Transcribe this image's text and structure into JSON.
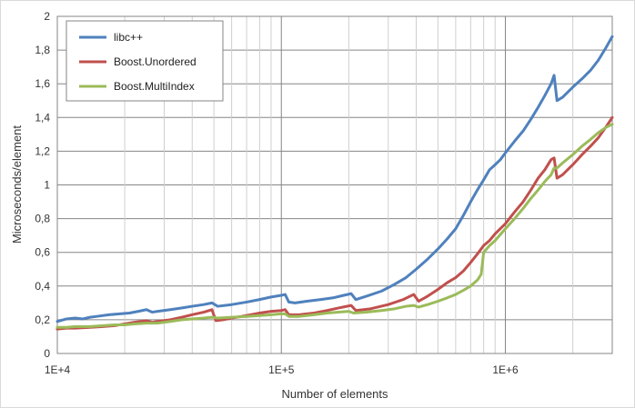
{
  "chart_data": {
    "type": "line",
    "title": "",
    "xlabel": "Number of elements",
    "ylabel": "Microseconds/element",
    "x_scale": "log",
    "xlim": [
      10000,
      3000000
    ],
    "ylim": [
      0,
      2
    ],
    "grid": true,
    "legend_position": "top-left",
    "x_ticks": [
      {
        "value": 10000,
        "label": "1E+4"
      },
      {
        "value": 100000,
        "label": "1E+5"
      },
      {
        "value": 1000000,
        "label": "1E+6"
      }
    ],
    "y_ticks": [
      {
        "value": 0,
        "label": "0"
      },
      {
        "value": 0.2,
        "label": "0,2"
      },
      {
        "value": 0.4,
        "label": "0,4"
      },
      {
        "value": 0.6,
        "label": "0,6"
      },
      {
        "value": 0.8,
        "label": "0,8"
      },
      {
        "value": 1,
        "label": "1"
      },
      {
        "value": 1.2,
        "label": "1,2"
      },
      {
        "value": 1.4,
        "label": "1,4"
      },
      {
        "value": 1.6,
        "label": "1,6"
      },
      {
        "value": 1.8,
        "label": "1,8"
      },
      {
        "value": 2,
        "label": "2"
      }
    ],
    "series": [
      {
        "name": "libc++",
        "color": "#4f81bd",
        "points": [
          [
            10000,
            0.19
          ],
          [
            11000,
            0.205
          ],
          [
            12000,
            0.21
          ],
          [
            13000,
            0.205
          ],
          [
            14000,
            0.215
          ],
          [
            15000,
            0.22
          ],
          [
            17000,
            0.23
          ],
          [
            19000,
            0.235
          ],
          [
            21000,
            0.24
          ],
          [
            23000,
            0.25
          ],
          [
            25000,
            0.26
          ],
          [
            26500,
            0.245
          ],
          [
            28000,
            0.25
          ],
          [
            32000,
            0.26
          ],
          [
            36000,
            0.27
          ],
          [
            40000,
            0.28
          ],
          [
            45000,
            0.29
          ],
          [
            49000,
            0.3
          ],
          [
            52000,
            0.28
          ],
          [
            60000,
            0.29
          ],
          [
            70000,
            0.305
          ],
          [
            80000,
            0.32
          ],
          [
            90000,
            0.335
          ],
          [
            100000,
            0.345
          ],
          [
            104000,
            0.35
          ],
          [
            108000,
            0.305
          ],
          [
            115000,
            0.3
          ],
          [
            130000,
            0.31
          ],
          [
            150000,
            0.32
          ],
          [
            170000,
            0.33
          ],
          [
            190000,
            0.345
          ],
          [
            205000,
            0.355
          ],
          [
            215000,
            0.32
          ],
          [
            240000,
            0.34
          ],
          [
            280000,
            0.37
          ],
          [
            320000,
            0.41
          ],
          [
            360000,
            0.45
          ],
          [
            400000,
            0.5
          ],
          [
            450000,
            0.56
          ],
          [
            500000,
            0.62
          ],
          [
            550000,
            0.68
          ],
          [
            600000,
            0.74
          ],
          [
            650000,
            0.82
          ],
          [
            700000,
            0.9
          ],
          [
            750000,
            0.97
          ],
          [
            800000,
            1.03
          ],
          [
            850000,
            1.09
          ],
          [
            900000,
            1.12
          ],
          [
            950000,
            1.15
          ],
          [
            1000000,
            1.19
          ],
          [
            1100000,
            1.26
          ],
          [
            1200000,
            1.32
          ],
          [
            1300000,
            1.39
          ],
          [
            1400000,
            1.46
          ],
          [
            1500000,
            1.53
          ],
          [
            1600000,
            1.6
          ],
          [
            1650000,
            1.65
          ],
          [
            1700000,
            1.5
          ],
          [
            1800000,
            1.52
          ],
          [
            2000000,
            1.58
          ],
          [
            2200000,
            1.63
          ],
          [
            2400000,
            1.68
          ],
          [
            2600000,
            1.74
          ],
          [
            2800000,
            1.81
          ],
          [
            3000000,
            1.88
          ]
        ]
      },
      {
        "name": "Boost.Unordered",
        "color": "#c0504d",
        "points": [
          [
            10000,
            0.145
          ],
          [
            11000,
            0.15
          ],
          [
            12000,
            0.15
          ],
          [
            14000,
            0.155
          ],
          [
            16000,
            0.16
          ],
          [
            18000,
            0.165
          ],
          [
            20000,
            0.175
          ],
          [
            22000,
            0.185
          ],
          [
            25000,
            0.195
          ],
          [
            26500,
            0.185
          ],
          [
            28000,
            0.19
          ],
          [
            32000,
            0.2
          ],
          [
            36000,
            0.215
          ],
          [
            40000,
            0.23
          ],
          [
            45000,
            0.245
          ],
          [
            49000,
            0.26
          ],
          [
            51000,
            0.195
          ],
          [
            55000,
            0.2
          ],
          [
            60000,
            0.21
          ],
          [
            70000,
            0.225
          ],
          [
            80000,
            0.24
          ],
          [
            90000,
            0.25
          ],
          [
            100000,
            0.255
          ],
          [
            104000,
            0.26
          ],
          [
            108000,
            0.23
          ],
          [
            120000,
            0.23
          ],
          [
            140000,
            0.24
          ],
          [
            160000,
            0.255
          ],
          [
            180000,
            0.27
          ],
          [
            205000,
            0.285
          ],
          [
            215000,
            0.255
          ],
          [
            250000,
            0.265
          ],
          [
            300000,
            0.29
          ],
          [
            350000,
            0.32
          ],
          [
            390000,
            0.35
          ],
          [
            410000,
            0.31
          ],
          [
            450000,
            0.34
          ],
          [
            500000,
            0.38
          ],
          [
            550000,
            0.42
          ],
          [
            600000,
            0.45
          ],
          [
            650000,
            0.49
          ],
          [
            700000,
            0.54
          ],
          [
            750000,
            0.59
          ],
          [
            800000,
            0.64
          ],
          [
            850000,
            0.67
          ],
          [
            900000,
            0.71
          ],
          [
            1000000,
            0.77
          ],
          [
            1100000,
            0.84
          ],
          [
            1200000,
            0.9
          ],
          [
            1300000,
            0.97
          ],
          [
            1400000,
            1.04
          ],
          [
            1500000,
            1.09
          ],
          [
            1600000,
            1.15
          ],
          [
            1650000,
            1.16
          ],
          [
            1700000,
            1.04
          ],
          [
            1800000,
            1.06
          ],
          [
            2000000,
            1.12
          ],
          [
            2200000,
            1.18
          ],
          [
            2400000,
            1.23
          ],
          [
            2600000,
            1.28
          ],
          [
            2800000,
            1.34
          ],
          [
            3000000,
            1.4
          ]
        ]
      },
      {
        "name": "Boost.MultiIndex",
        "color": "#9bbb59",
        "points": [
          [
            10000,
            0.155
          ],
          [
            11000,
            0.155
          ],
          [
            12000,
            0.16
          ],
          [
            14000,
            0.16
          ],
          [
            16000,
            0.165
          ],
          [
            18000,
            0.17
          ],
          [
            20000,
            0.17
          ],
          [
            22000,
            0.175
          ],
          [
            25000,
            0.18
          ],
          [
            28000,
            0.18
          ],
          [
            32000,
            0.19
          ],
          [
            36000,
            0.2
          ],
          [
            40000,
            0.205
          ],
          [
            45000,
            0.21
          ],
          [
            49000,
            0.215
          ],
          [
            52000,
            0.21
          ],
          [
            60000,
            0.215
          ],
          [
            70000,
            0.22
          ],
          [
            80000,
            0.225
          ],
          [
            90000,
            0.23
          ],
          [
            100000,
            0.235
          ],
          [
            104000,
            0.235
          ],
          [
            108000,
            0.22
          ],
          [
            120000,
            0.22
          ],
          [
            140000,
            0.23
          ],
          [
            160000,
            0.24
          ],
          [
            180000,
            0.245
          ],
          [
            200000,
            0.25
          ],
          [
            210000,
            0.24
          ],
          [
            240000,
            0.245
          ],
          [
            280000,
            0.255
          ],
          [
            320000,
            0.265
          ],
          [
            360000,
            0.28
          ],
          [
            390000,
            0.285
          ],
          [
            410000,
            0.275
          ],
          [
            450000,
            0.29
          ],
          [
            500000,
            0.31
          ],
          [
            550000,
            0.33
          ],
          [
            600000,
            0.35
          ],
          [
            650000,
            0.375
          ],
          [
            700000,
            0.4
          ],
          [
            750000,
            0.435
          ],
          [
            780000,
            0.47
          ],
          [
            800000,
            0.6
          ],
          [
            850000,
            0.64
          ],
          [
            900000,
            0.67
          ],
          [
            1000000,
            0.74
          ],
          [
            1100000,
            0.8
          ],
          [
            1200000,
            0.86
          ],
          [
            1300000,
            0.92
          ],
          [
            1400000,
            0.97
          ],
          [
            1500000,
            1.02
          ],
          [
            1600000,
            1.06
          ],
          [
            1650000,
            1.1
          ],
          [
            1700000,
            1.1
          ],
          [
            1800000,
            1.13
          ],
          [
            2000000,
            1.18
          ],
          [
            2200000,
            1.23
          ],
          [
            2400000,
            1.27
          ],
          [
            2600000,
            1.31
          ],
          [
            2800000,
            1.34
          ],
          [
            3000000,
            1.36
          ]
        ]
      }
    ]
  }
}
